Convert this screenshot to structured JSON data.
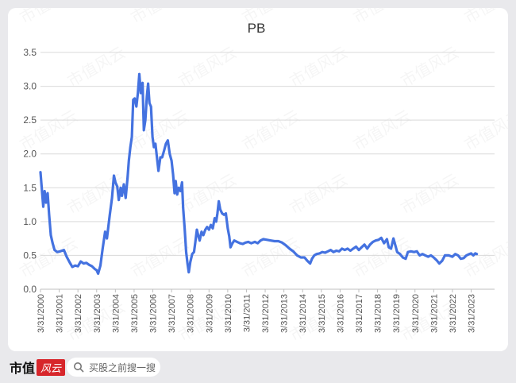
{
  "chart_data": {
    "type": "line",
    "title": "PB",
    "xlabel": "",
    "ylabel": "",
    "ylim": [
      0,
      3.5
    ],
    "yticks": [
      "0.0",
      "0.5",
      "1.0",
      "1.5",
      "2.0",
      "2.5",
      "3.0",
      "3.5"
    ],
    "xticks": [
      "3/31/2000",
      "3/31/2001",
      "3/31/2002",
      "3/31/2003",
      "3/31/2004",
      "3/31/2005",
      "3/31/2006",
      "3/31/2007",
      "3/31/2008",
      "3/31/2009",
      "3/31/2010",
      "3/31/2011",
      "3/31/2012",
      "3/31/2013",
      "3/31/2014",
      "3/31/2015",
      "3/31/2016",
      "3/31/2017",
      "3/31/2018",
      "3/31/2019",
      "3/31/2020",
      "3/31/2021",
      "3/31/2022",
      "3/31/2023"
    ],
    "grid": true,
    "legend": "none",
    "series": [
      {
        "color": "#4472e0",
        "points": [
          [
            2000.0,
            1.73
          ],
          [
            2000.07,
            1.48
          ],
          [
            2000.15,
            1.22
          ],
          [
            2000.22,
            1.45
          ],
          [
            2000.3,
            1.28
          ],
          [
            2000.38,
            1.42
          ],
          [
            2000.46,
            1.1
          ],
          [
            2000.55,
            0.8
          ],
          [
            2000.65,
            0.68
          ],
          [
            2000.75,
            0.58
          ],
          [
            2000.9,
            0.55
          ],
          [
            2001.05,
            0.56
          ],
          [
            2001.25,
            0.58
          ],
          [
            2001.4,
            0.48
          ],
          [
            2001.55,
            0.4
          ],
          [
            2001.7,
            0.33
          ],
          [
            2001.85,
            0.35
          ],
          [
            2002.0,
            0.34
          ],
          [
            2002.15,
            0.41
          ],
          [
            2002.3,
            0.38
          ],
          [
            2002.45,
            0.39
          ],
          [
            2002.6,
            0.36
          ],
          [
            2002.75,
            0.34
          ],
          [
            2002.9,
            0.3
          ],
          [
            2003.0,
            0.28
          ],
          [
            2003.08,
            0.23
          ],
          [
            2003.2,
            0.35
          ],
          [
            2003.32,
            0.6
          ],
          [
            2003.45,
            0.85
          ],
          [
            2003.55,
            0.75
          ],
          [
            2003.7,
            1.1
          ],
          [
            2003.82,
            1.35
          ],
          [
            2003.92,
            1.68
          ],
          [
            2004.0,
            1.58
          ],
          [
            2004.1,
            1.52
          ],
          [
            2004.18,
            1.32
          ],
          [
            2004.28,
            1.5
          ],
          [
            2004.35,
            1.38
          ],
          [
            2004.45,
            1.55
          ],
          [
            2004.55,
            1.35
          ],
          [
            2004.65,
            1.65
          ],
          [
            2004.72,
            1.9
          ],
          [
            2004.8,
            2.1
          ],
          [
            2004.88,
            2.25
          ],
          [
            2004.95,
            2.8
          ],
          [
            2005.03,
            2.82
          ],
          [
            2005.12,
            2.7
          ],
          [
            2005.2,
            2.9
          ],
          [
            2005.28,
            3.18
          ],
          [
            2005.36,
            2.9
          ],
          [
            2005.45,
            3.05
          ],
          [
            2005.52,
            2.35
          ],
          [
            2005.6,
            2.5
          ],
          [
            2005.68,
            2.85
          ],
          [
            2005.75,
            3.04
          ],
          [
            2005.82,
            2.75
          ],
          [
            2005.9,
            2.7
          ],
          [
            2005.98,
            2.25
          ],
          [
            2006.06,
            2.1
          ],
          [
            2006.14,
            2.15
          ],
          [
            2006.22,
            1.95
          ],
          [
            2006.3,
            1.75
          ],
          [
            2006.4,
            1.95
          ],
          [
            2006.5,
            1.95
          ],
          [
            2006.6,
            2.05
          ],
          [
            2006.7,
            2.15
          ],
          [
            2006.8,
            2.2
          ],
          [
            2006.9,
            2.0
          ],
          [
            2007.0,
            1.9
          ],
          [
            2007.08,
            1.7
          ],
          [
            2007.16,
            1.42
          ],
          [
            2007.22,
            1.6
          ],
          [
            2007.3,
            1.4
          ],
          [
            2007.38,
            1.5
          ],
          [
            2007.48,
            1.45
          ],
          [
            2007.56,
            1.58
          ],
          [
            2007.62,
            1.2
          ],
          [
            2007.7,
            0.9
          ],
          [
            2007.78,
            0.55
          ],
          [
            2007.85,
            0.38
          ],
          [
            2007.92,
            0.25
          ],
          [
            2008.0,
            0.4
          ],
          [
            2008.1,
            0.52
          ],
          [
            2008.2,
            0.55
          ],
          [
            2008.27,
            0.7
          ],
          [
            2008.35,
            0.88
          ],
          [
            2008.42,
            0.8
          ],
          [
            2008.5,
            0.72
          ],
          [
            2008.6,
            0.85
          ],
          [
            2008.7,
            0.8
          ],
          [
            2008.8,
            0.88
          ],
          [
            2008.9,
            0.92
          ],
          [
            2009.0,
            0.88
          ],
          [
            2009.1,
            0.95
          ],
          [
            2009.2,
            0.9
          ],
          [
            2009.3,
            1.05
          ],
          [
            2009.38,
            1.0
          ],
          [
            2009.45,
            1.12
          ],
          [
            2009.52,
            1.3
          ],
          [
            2009.6,
            1.18
          ],
          [
            2009.7,
            1.12
          ],
          [
            2009.8,
            1.1
          ],
          [
            2009.9,
            1.12
          ],
          [
            2010.0,
            0.9
          ],
          [
            2010.08,
            0.78
          ],
          [
            2010.15,
            0.62
          ],
          [
            2010.25,
            0.68
          ],
          [
            2010.35,
            0.72
          ],
          [
            2010.5,
            0.7
          ],
          [
            2010.65,
            0.68
          ],
          [
            2010.8,
            0.67
          ],
          [
            2010.95,
            0.69
          ],
          [
            2011.1,
            0.7
          ],
          [
            2011.25,
            0.68
          ],
          [
            2011.45,
            0.7
          ],
          [
            2011.6,
            0.68
          ],
          [
            2011.75,
            0.72
          ],
          [
            2011.9,
            0.74
          ],
          [
            2012.1,
            0.73
          ],
          [
            2012.3,
            0.72
          ],
          [
            2012.5,
            0.71
          ],
          [
            2012.7,
            0.71
          ],
          [
            2012.9,
            0.69
          ],
          [
            2013.1,
            0.65
          ],
          [
            2013.3,
            0.6
          ],
          [
            2013.5,
            0.56
          ],
          [
            2013.7,
            0.5
          ],
          [
            2013.9,
            0.47
          ],
          [
            2014.1,
            0.47
          ],
          [
            2014.25,
            0.42
          ],
          [
            2014.4,
            0.38
          ],
          [
            2014.5,
            0.45
          ],
          [
            2014.62,
            0.5
          ],
          [
            2014.75,
            0.52
          ],
          [
            2014.9,
            0.53
          ],
          [
            2015.05,
            0.55
          ],
          [
            2015.2,
            0.54
          ],
          [
            2015.35,
            0.56
          ],
          [
            2015.5,
            0.58
          ],
          [
            2015.65,
            0.55
          ],
          [
            2015.8,
            0.57
          ],
          [
            2015.95,
            0.56
          ],
          [
            2016.1,
            0.6
          ],
          [
            2016.25,
            0.58
          ],
          [
            2016.4,
            0.6
          ],
          [
            2016.55,
            0.57
          ],
          [
            2016.7,
            0.6
          ],
          [
            2016.85,
            0.63
          ],
          [
            2017.0,
            0.58
          ],
          [
            2017.15,
            0.62
          ],
          [
            2017.3,
            0.66
          ],
          [
            2017.45,
            0.6
          ],
          [
            2017.6,
            0.66
          ],
          [
            2017.75,
            0.7
          ],
          [
            2017.9,
            0.72
          ],
          [
            2018.05,
            0.73
          ],
          [
            2018.2,
            0.76
          ],
          [
            2018.35,
            0.68
          ],
          [
            2018.5,
            0.74
          ],
          [
            2018.6,
            0.62
          ],
          [
            2018.72,
            0.6
          ],
          [
            2018.85,
            0.75
          ],
          [
            2018.95,
            0.65
          ],
          [
            2019.05,
            0.55
          ],
          [
            2019.2,
            0.52
          ],
          [
            2019.35,
            0.47
          ],
          [
            2019.5,
            0.45
          ],
          [
            2019.62,
            0.55
          ],
          [
            2019.78,
            0.56
          ],
          [
            2019.95,
            0.55
          ],
          [
            2020.1,
            0.56
          ],
          [
            2020.25,
            0.5
          ],
          [
            2020.4,
            0.52
          ],
          [
            2020.55,
            0.5
          ],
          [
            2020.7,
            0.48
          ],
          [
            2020.85,
            0.5
          ],
          [
            2021.0,
            0.47
          ],
          [
            2021.15,
            0.43
          ],
          [
            2021.3,
            0.38
          ],
          [
            2021.45,
            0.42
          ],
          [
            2021.6,
            0.5
          ],
          [
            2021.8,
            0.5
          ],
          [
            2022.0,
            0.48
          ],
          [
            2022.15,
            0.52
          ],
          [
            2022.3,
            0.5
          ],
          [
            2022.45,
            0.45
          ],
          [
            2022.6,
            0.46
          ],
          [
            2022.75,
            0.5
          ],
          [
            2022.9,
            0.52
          ],
          [
            2023.0,
            0.53
          ],
          [
            2023.12,
            0.5
          ],
          [
            2023.22,
            0.53
          ],
          [
            2023.3,
            0.52
          ]
        ]
      }
    ]
  },
  "footer": {
    "brand_name": "市值",
    "brand_badge": "风云",
    "search_placeholder": "买股之前搜一搜",
    "search_icon": "search-icon"
  },
  "watermark_text": "市值风云"
}
